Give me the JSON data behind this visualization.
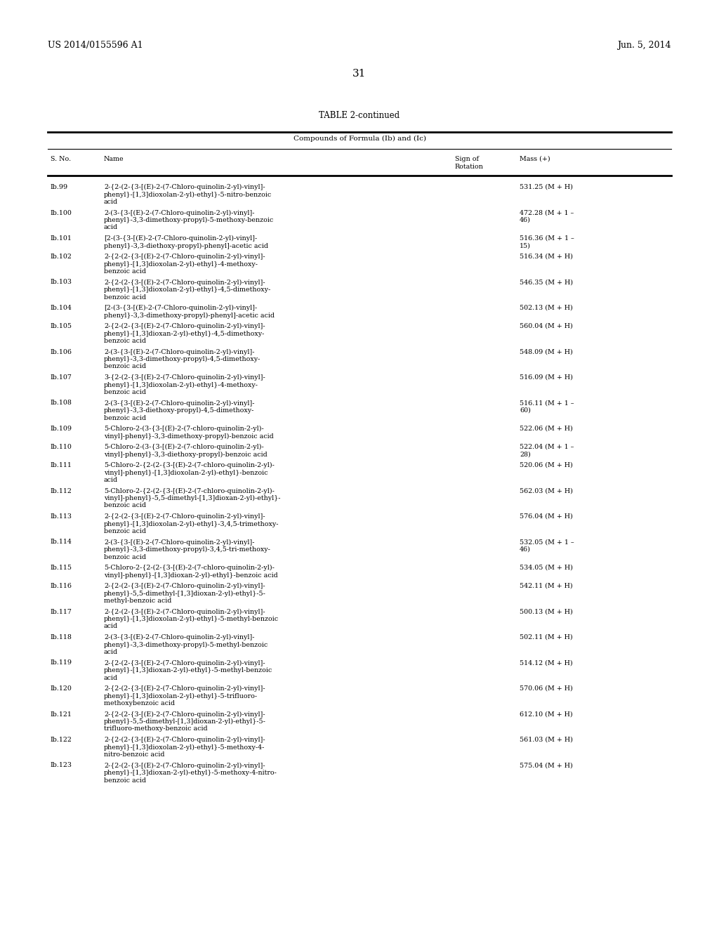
{
  "header_left": "US 2014/0155596 A1",
  "header_right": "Jun. 5, 2014",
  "page_number": "31",
  "table_title": "TABLE 2-continued",
  "table_subtitle": "Compounds of Formula (Ib) and (Ic)",
  "rows": [
    [
      "Ib.99",
      "2-{2-(2-{3-[(E)-2-(7-Chloro-quinolin-2-yl)-vinyl]-\nphenyl}-[1,3]dioxolan-2-yl)-ethyl}-5-nitro-benzoic\nacid",
      "531.25 (M + H)"
    ],
    [
      "Ib.100",
      "2-(3-{3-[(E)-2-(7-Chloro-quinolin-2-yl)-vinyl]-\nphenyl}-3,3-dimethoxy-propyl)-5-methoxy-benzoic\nacid",
      "472.28 (M + 1 –\n46)"
    ],
    [
      "Ib.101",
      "[2-(3-{3-[(E)-2-(7-Chloro-quinolin-2-yl)-vinyl]-\nphenyl}-3,3-diethoxy-propyl)-phenyl]-acetic acid",
      "516.36 (M + 1 –\n15)"
    ],
    [
      "Ib.102",
      "2-{2-(2-{3-[(E)-2-(7-Chloro-quinolin-2-yl)-vinyl]-\nphenyl}-[1,3]dioxolan-2-yl)-ethyl}-4-methoxy-\nbenzoic acid",
      "516.34 (M + H)"
    ],
    [
      "Ib.103",
      "2-{2-(2-{3-[(E)-2-(7-Chloro-quinolin-2-yl)-vinyl]-\nphenyl}-[1,3]dioxolan-2-yl)-ethyl}-4,5-dimethoxy-\nbenzoic acid",
      "546.35 (M + H)"
    ],
    [
      "Ib.104",
      "[2-(3-{3-[(E)-2-(7-Chloro-quinolin-2-yl)-vinyl]-\nphenyl}-3,3-dimethoxy-propyl)-phenyl]-acetic acid",
      "502.13 (M + H)"
    ],
    [
      "Ib.105",
      "2-{2-(2-{3-[(E)-2-(7-Chloro-quinolin-2-yl)-vinyl]-\nphenyl}-[1,3]dioxan-2-yl)-ethyl}-4,5-dimethoxy-\nbenzoic acid",
      "560.04 (M + H)"
    ],
    [
      "Ib.106",
      "2-(3-{3-[(E)-2-(7-Chloro-quinolin-2-yl)-vinyl]-\nphenyl}-3,3-dimethoxy-propyl)-4,5-dimethoxy-\nbenzoic acid",
      "548.09 (M + H)"
    ],
    [
      "Ib.107",
      "3-{2-(2-{3-[(E)-2-(7-Chloro-quinolin-2-yl)-vinyl]-\nphenyl}-[1,3]dioxolan-2-yl)-ethyl}-4-methoxy-\nbenzoic acid",
      "516.09 (M + H)"
    ],
    [
      "Ib.108",
      "2-(3-{3-[(E)-2-(7-Chloro-quinolin-2-yl)-vinyl]-\nphenyl}-3,3-diethoxy-propyl)-4,5-dimethoxy-\nbenzoic acid",
      "516.11 (M + 1 –\n60)"
    ],
    [
      "Ib.109",
      "5-Chloro-2-(3-{3-[(E)-2-(7-chloro-quinolin-2-yl)-\nvinyl]-phenyl}-3,3-dimethoxy-propyl)-benzoic acid",
      "522.06 (M + H)"
    ],
    [
      "Ib.110",
      "5-Chloro-2-(3-{3-[(E)-2-(7-chloro-quinolin-2-yl)-\nvinyl]-phenyl}-3,3-diethoxy-propyl)-benzoic acid",
      "522.04 (M + 1 –\n28)"
    ],
    [
      "Ib.111",
      "5-Chloro-2-{2-(2-{3-[(E)-2-(7-chloro-quinolin-2-yl)-\nvinyl]-phenyl}-[1,3]dioxolan-2-yl)-ethyl}-benzoic\nacid",
      "520.06 (M + H)"
    ],
    [
      "Ib.112",
      "5-Chloro-2-{2-(2-{3-[(E)-2-(7-chloro-quinolin-2-yl)-\nvinyl]-phenyl}-5,5-dimethyl-[1,3]dioxan-2-yl)-ethyl}-\nbenzoic acid",
      "562.03 (M + H)"
    ],
    [
      "Ib.113",
      "2-{2-(2-{3-[(E)-2-(7-Chloro-quinolin-2-yl)-vinyl]-\nphenyl}-[1,3]dioxolan-2-yl)-ethyl}-3,4,5-trimethoxy-\nbenzoic acid",
      "576.04 (M + H)"
    ],
    [
      "Ib.114",
      "2-(3-{3-[(E)-2-(7-Chloro-quinolin-2-yl)-vinyl]-\nphenyl}-3,3-dimethoxy-propyl)-3,4,5-tri-methoxy-\nbenzoic acid",
      "532.05 (M + 1 –\n46)"
    ],
    [
      "Ib.115",
      "5-Chloro-2-{2-(2-{3-[(E)-2-(7-chloro-quinolin-2-yl)-\nvinyl]-phenyl}-[1,3]dioxan-2-yl)-ethyl}-benzoic acid",
      "534.05 (M + H)"
    ],
    [
      "Ib.116",
      "2-{2-(2-{3-[(E)-2-(7-Chloro-quinolin-2-yl)-vinyl]-\nphenyl}-5,5-dimethyl-[1,3]dioxan-2-yl)-ethyl}-5-\nmethyl-benzoic acid",
      "542.11 (M + H)"
    ],
    [
      "Ib.117",
      "2-{2-(2-{3-[(E)-2-(7-Chloro-quinolin-2-yl)-vinyl]-\nphenyl}-[1,3]dioxolan-2-yl)-ethyl}-5-methyl-benzoic\nacid",
      "500.13 (M + H)"
    ],
    [
      "Ib.118",
      "2-(3-{3-[(E)-2-(7-Chloro-quinolin-2-yl)-vinyl]-\nphenyl}-3,3-dimethoxy-propyl)-5-methyl-benzoic\nacid",
      "502.11 (M + H)"
    ],
    [
      "Ib.119",
      "2-{2-(2-{3-[(E)-2-(7-Chloro-quinolin-2-yl)-vinyl]-\nphenyl}-[1,3]dioxan-2-yl)-ethyl}-5-methyl-benzoic\nacid",
      "514.12 (M + H)"
    ],
    [
      "Ib.120",
      "2-{2-(2-{3-[(E)-2-(7-Chloro-quinolin-2-yl)-vinyl]-\nphenyl}-[1,3]dioxolan-2-yl)-ethyl}-5-trifluoro-\nmethoxybenzoic acid",
      "570.06 (M + H)"
    ],
    [
      "Ib.121",
      "2-{2-(2-{3-[(E)-2-(7-Chloro-quinolin-2-yl)-vinyl]-\nphenyl}-5,5-dimethyl-[1,3]dioxan-2-yl)-ethyl}-5-\ntrifluoro-methoxy-benzoic acid",
      "612.10 (M + H)"
    ],
    [
      "Ib.122",
      "2-{2-(2-{3-[(E)-2-(7-Chloro-quinolin-2-yl)-vinyl]-\nphenyl}-[1,3]dioxolan-2-yl)-ethyl}-5-methoxy-4-\nnitro-benzoic acid",
      "561.03 (M + H)"
    ],
    [
      "Ib.123",
      "2-{2-(2-{3-[(E)-2-(7-Chloro-quinolin-2-yl)-vinyl]-\nphenyl}-[1,3]dioxan-2-yl)-ethyl}-5-methoxy-4-nitro-\nbenzoic acid",
      "575.04 (M + H)"
    ]
  ],
  "background_color": "#ffffff",
  "text_color": "#000000",
  "font_size": 6.8,
  "header_font_size": 9.0,
  "page_num_font_size": 11.0,
  "title_font_size": 8.5
}
